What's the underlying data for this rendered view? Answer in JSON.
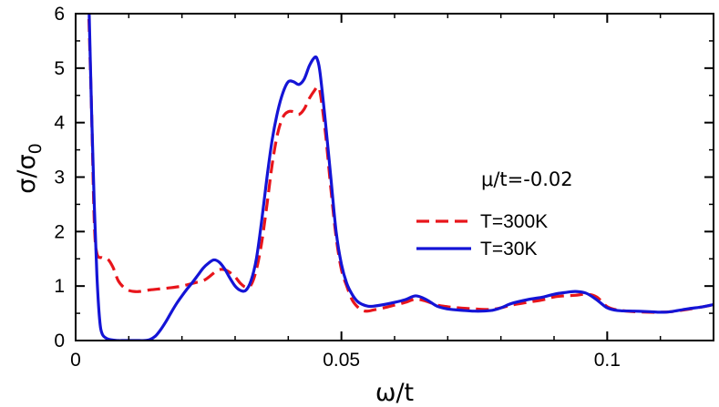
{
  "chart_data": {
    "type": "line",
    "title": "",
    "xlabel": "ω/t",
    "ylabel": {
      "main": "σ/σ",
      "sub": "0"
    },
    "xlim": [
      0,
      0.12
    ],
    "ylim": [
      0,
      6
    ],
    "x_ticks": [
      0,
      0.05,
      0.1
    ],
    "x_tick_labels": [
      "0",
      "0.05",
      "0.1"
    ],
    "y_ticks": [
      0,
      1,
      2,
      3,
      4,
      5,
      6
    ],
    "y_tick_labels": [
      "0",
      "1",
      "2",
      "3",
      "4",
      "5",
      "6"
    ],
    "grid": false,
    "legend_position": "right-middle",
    "annotation": "μ/t=-0.02",
    "series": [
      {
        "name": "T=300K",
        "color": "#e8151b",
        "dash": "dashed",
        "x": [
          0.0025,
          0.003,
          0.0035,
          0.004,
          0.005,
          0.006,
          0.007,
          0.008,
          0.009,
          0.01,
          0.011,
          0.012,
          0.014,
          0.016,
          0.018,
          0.02,
          0.022,
          0.024,
          0.025,
          0.026,
          0.027,
          0.028,
          0.029,
          0.03,
          0.031,
          0.032,
          0.033,
          0.034,
          0.035,
          0.036,
          0.037,
          0.038,
          0.039,
          0.04,
          0.041,
          0.042,
          0.043,
          0.044,
          0.045,
          0.0455,
          0.046,
          0.047,
          0.048,
          0.049,
          0.05,
          0.051,
          0.052,
          0.053,
          0.054,
          0.055,
          0.056,
          0.058,
          0.06,
          0.062,
          0.064,
          0.066,
          0.068,
          0.07,
          0.072,
          0.075,
          0.078,
          0.08,
          0.082,
          0.085,
          0.088,
          0.09,
          0.092,
          0.094,
          0.096,
          0.098,
          0.1,
          0.102,
          0.105,
          0.108,
          0.11,
          0.112,
          0.115,
          0.118,
          0.12
        ],
        "y": [
          5.9,
          4.2,
          2.2,
          1.6,
          1.52,
          1.5,
          1.35,
          1.1,
          0.98,
          0.92,
          0.9,
          0.9,
          0.93,
          0.95,
          0.97,
          1.0,
          1.05,
          1.1,
          1.16,
          1.24,
          1.3,
          1.3,
          1.25,
          1.17,
          1.05,
          0.98,
          1.02,
          1.3,
          1.8,
          2.5,
          3.25,
          3.8,
          4.1,
          4.2,
          4.2,
          4.15,
          4.25,
          4.45,
          4.6,
          4.65,
          4.55,
          3.8,
          2.8,
          1.9,
          1.3,
          1.0,
          0.75,
          0.62,
          0.55,
          0.54,
          0.56,
          0.6,
          0.65,
          0.7,
          0.76,
          0.72,
          0.65,
          0.62,
          0.6,
          0.58,
          0.57,
          0.6,
          0.65,
          0.7,
          0.75,
          0.8,
          0.82,
          0.83,
          0.85,
          0.8,
          0.62,
          0.56,
          0.53,
          0.52,
          0.52,
          0.53,
          0.57,
          0.62,
          0.66
        ]
      },
      {
        "name": "T=30K",
        "color": "#1414d6",
        "dash": "solid",
        "x": [
          0.0025,
          0.003,
          0.0035,
          0.004,
          0.0045,
          0.005,
          0.006,
          0.007,
          0.008,
          0.009,
          0.01,
          0.011,
          0.012,
          0.013,
          0.014,
          0.015,
          0.016,
          0.017,
          0.018,
          0.019,
          0.02,
          0.021,
          0.022,
          0.023,
          0.024,
          0.025,
          0.026,
          0.027,
          0.028,
          0.029,
          0.03,
          0.031,
          0.032,
          0.033,
          0.034,
          0.035,
          0.036,
          0.037,
          0.038,
          0.039,
          0.04,
          0.041,
          0.042,
          0.043,
          0.044,
          0.045,
          0.0455,
          0.046,
          0.047,
          0.048,
          0.049,
          0.05,
          0.051,
          0.052,
          0.053,
          0.054,
          0.055,
          0.056,
          0.058,
          0.06,
          0.062,
          0.064,
          0.066,
          0.068,
          0.07,
          0.072,
          0.075,
          0.078,
          0.08,
          0.082,
          0.085,
          0.088,
          0.09,
          0.092,
          0.094,
          0.096,
          0.098,
          0.1,
          0.102,
          0.105,
          0.108,
          0.11,
          0.112,
          0.115,
          0.118,
          0.12
        ],
        "y": [
          6.2,
          4.2,
          2.5,
          1.2,
          0.4,
          0.12,
          0.03,
          0.01,
          0.0,
          0.0,
          0.0,
          0.0,
          0.0,
          0.0,
          0.02,
          0.08,
          0.2,
          0.35,
          0.52,
          0.68,
          0.82,
          0.95,
          1.07,
          1.2,
          1.33,
          1.42,
          1.48,
          1.44,
          1.32,
          1.15,
          1.0,
          0.92,
          0.92,
          1.1,
          1.5,
          2.2,
          3.0,
          3.7,
          4.2,
          4.55,
          4.75,
          4.75,
          4.7,
          4.8,
          5.05,
          5.2,
          5.15,
          4.9,
          4.0,
          3.0,
          2.0,
          1.4,
          1.05,
          0.85,
          0.72,
          0.66,
          0.63,
          0.63,
          0.66,
          0.7,
          0.75,
          0.82,
          0.75,
          0.63,
          0.58,
          0.56,
          0.54,
          0.55,
          0.6,
          0.68,
          0.75,
          0.8,
          0.85,
          0.88,
          0.9,
          0.87,
          0.75,
          0.6,
          0.55,
          0.54,
          0.53,
          0.52,
          0.53,
          0.58,
          0.62,
          0.66
        ]
      }
    ]
  }
}
